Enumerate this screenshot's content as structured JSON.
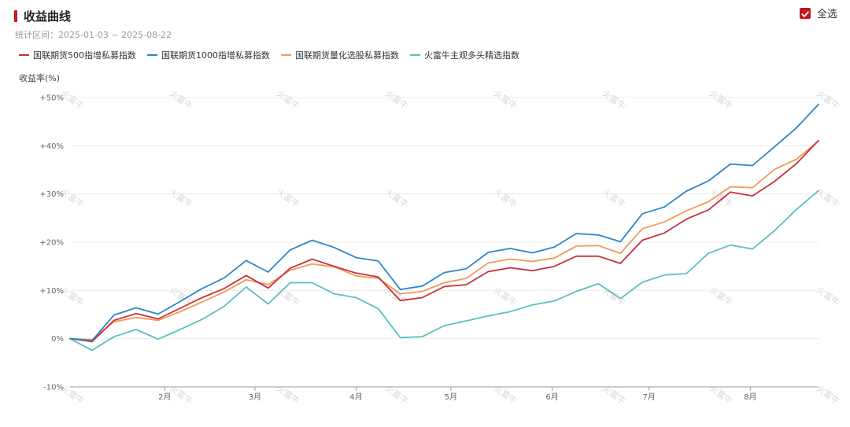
{
  "header": {
    "title": "收益曲线",
    "range": "统计区间：2025-01-03 ~ 2025-08-22",
    "select_all": "全选"
  },
  "watermark": "火富牛",
  "colors": {
    "accent": "#c8161e"
  },
  "chart_data": {
    "type": "line",
    "ylabel": "收益率(%)",
    "yticks": [
      50,
      40,
      30,
      20,
      10,
      0,
      -10
    ],
    "ytick_labels": [
      "+50%",
      "+40%",
      "+30%",
      "+20%",
      "+10%",
      "0%",
      "-10%"
    ],
    "ylim": [
      -10,
      50
    ],
    "xlim": [
      0,
      34
    ],
    "xticks": [
      4.3,
      8.4,
      13.0,
      17.3,
      21.9,
      26.3,
      30.9
    ],
    "xtick_labels": [
      "2月",
      "3月",
      "4月",
      "5月",
      "6月",
      "7月",
      "8月"
    ],
    "grid": true,
    "series": [
      {
        "name": "国联期货500指增私募指数",
        "color": "#c8313a",
        "values": [
          0,
          -0.6,
          3.8,
          5.2,
          4.1,
          6.3,
          8.5,
          10.4,
          13.1,
          10.5,
          14.6,
          16.5,
          15.0,
          13.6,
          12.8,
          7.9,
          8.5,
          10.8,
          11.2,
          13.9,
          14.7,
          14.1,
          15.0,
          17.1,
          17.1,
          15.6,
          20.4,
          21.9,
          24.8,
          26.7,
          30.4,
          29.6,
          32.6,
          36.3,
          41.1
        ]
      },
      {
        "name": "国联期货1000指增私募指数",
        "color": "#2e86c8",
        "values": [
          0,
          -0.4,
          4.9,
          6.4,
          5.1,
          7.7,
          10.4,
          12.6,
          16.2,
          13.8,
          18.4,
          20.4,
          18.9,
          16.8,
          16.1,
          10.2,
          10.9,
          13.7,
          14.5,
          17.9,
          18.7,
          17.8,
          19.0,
          21.8,
          21.5,
          20.1,
          25.9,
          27.3,
          30.6,
          32.7,
          36.2,
          35.9,
          39.8,
          43.7,
          48.6
        ]
      },
      {
        "name": "国联期货量化选股私募指数",
        "color": "#f0995a",
        "values": [
          0,
          -0.2,
          3.5,
          4.4,
          3.8,
          5.6,
          7.6,
          9.7,
          12.2,
          11.2,
          14.2,
          15.5,
          14.9,
          13.0,
          12.5,
          9.3,
          9.8,
          11.6,
          12.5,
          15.7,
          16.5,
          16.0,
          16.7,
          19.2,
          19.3,
          17.7,
          22.8,
          24.2,
          26.5,
          28.4,
          31.5,
          31.3,
          35.1,
          37.2,
          41.0
        ]
      },
      {
        "name": "火富牛主观多头精选指数",
        "color": "#5bbfbf",
        "values": [
          0,
          -2.4,
          0.4,
          1.9,
          -0.1,
          1.9,
          4.0,
          6.7,
          10.7,
          7.2,
          11.6,
          11.6,
          9.3,
          8.5,
          6.2,
          0.2,
          0.4,
          2.7,
          3.7,
          4.7,
          5.6,
          7.0,
          7.8,
          9.8,
          11.4,
          8.3,
          11.7,
          13.2,
          13.5,
          17.7,
          19.4,
          18.6,
          22.4,
          26.8,
          30.7
        ]
      }
    ]
  }
}
